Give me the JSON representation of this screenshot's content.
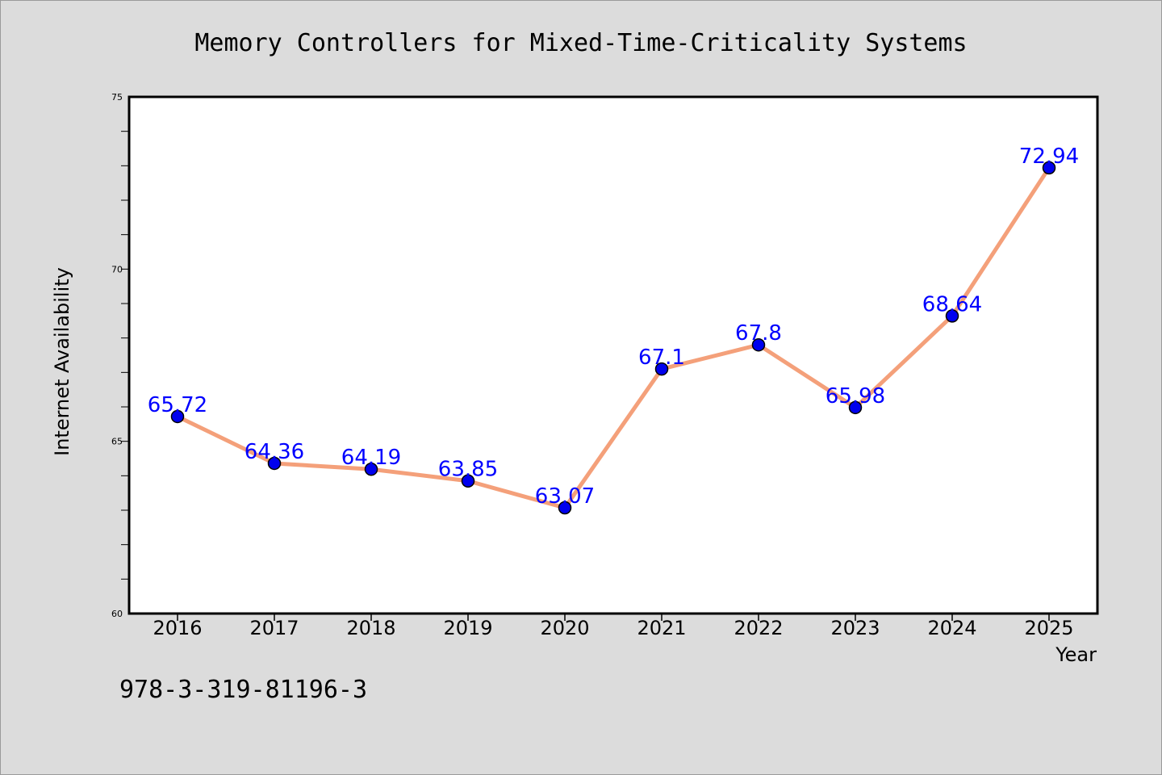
{
  "chart_data": {
    "type": "line",
    "title": "Memory Controllers for Mixed-Time-Criticality Systems",
    "xlabel": "Year",
    "ylabel": "Internet Availability",
    "categories": [
      "2016",
      "2017",
      "2018",
      "2019",
      "2020",
      "2021",
      "2022",
      "2023",
      "2024",
      "2025"
    ],
    "series": [
      {
        "values": [
          65.72,
          64.36,
          64.19,
          63.85,
          63.07,
          67.1,
          67.8,
          65.98,
          68.64,
          72.94
        ],
        "line_color": "#f4a07a",
        "marker_color": "#0000ee",
        "label_color": "#0000ff"
      }
    ],
    "data_labels": [
      "65.72",
      "64.36",
      "64.19",
      "63.85",
      "63.07",
      "67.1",
      "67.8",
      "65.98",
      "68.64",
      "72.94"
    ],
    "ylim": [
      60,
      75
    ],
    "yticks": [
      "60",
      "65",
      "70",
      "75"
    ],
    "grid": false,
    "legend": "none"
  },
  "footnote": "978-3-319-81196-3",
  "colors": {
    "background": "#dcdcdc",
    "plot_background": "#ffffff",
    "axis": "#000000"
  }
}
